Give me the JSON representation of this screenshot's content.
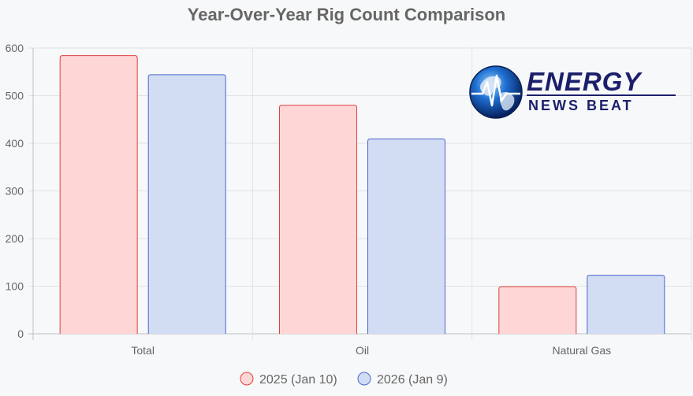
{
  "chart_data": {
    "type": "bar",
    "title": "Year-Over-Year Rig Count Comparison",
    "xlabel": "",
    "ylabel": "",
    "categories": [
      "Total",
      "Oil",
      "Natural Gas"
    ],
    "series": [
      {
        "name": "2025 (Jan 10)",
        "values": [
          584,
          480,
          99
        ],
        "color": "#ffd6d6",
        "border": "#e0413f"
      },
      {
        "name": "2026 (Jan 9)",
        "values": [
          544,
          409,
          123
        ],
        "color": "#d2dcf3",
        "border": "#4a67cf"
      }
    ],
    "ylim": [
      0,
      600
    ],
    "yticks": [
      0,
      100,
      200,
      300,
      400,
      500,
      600
    ],
    "grid": true,
    "legend": "bottom"
  },
  "logo": {
    "line1": "ENERGY",
    "line2": "NEWS BEAT"
  }
}
